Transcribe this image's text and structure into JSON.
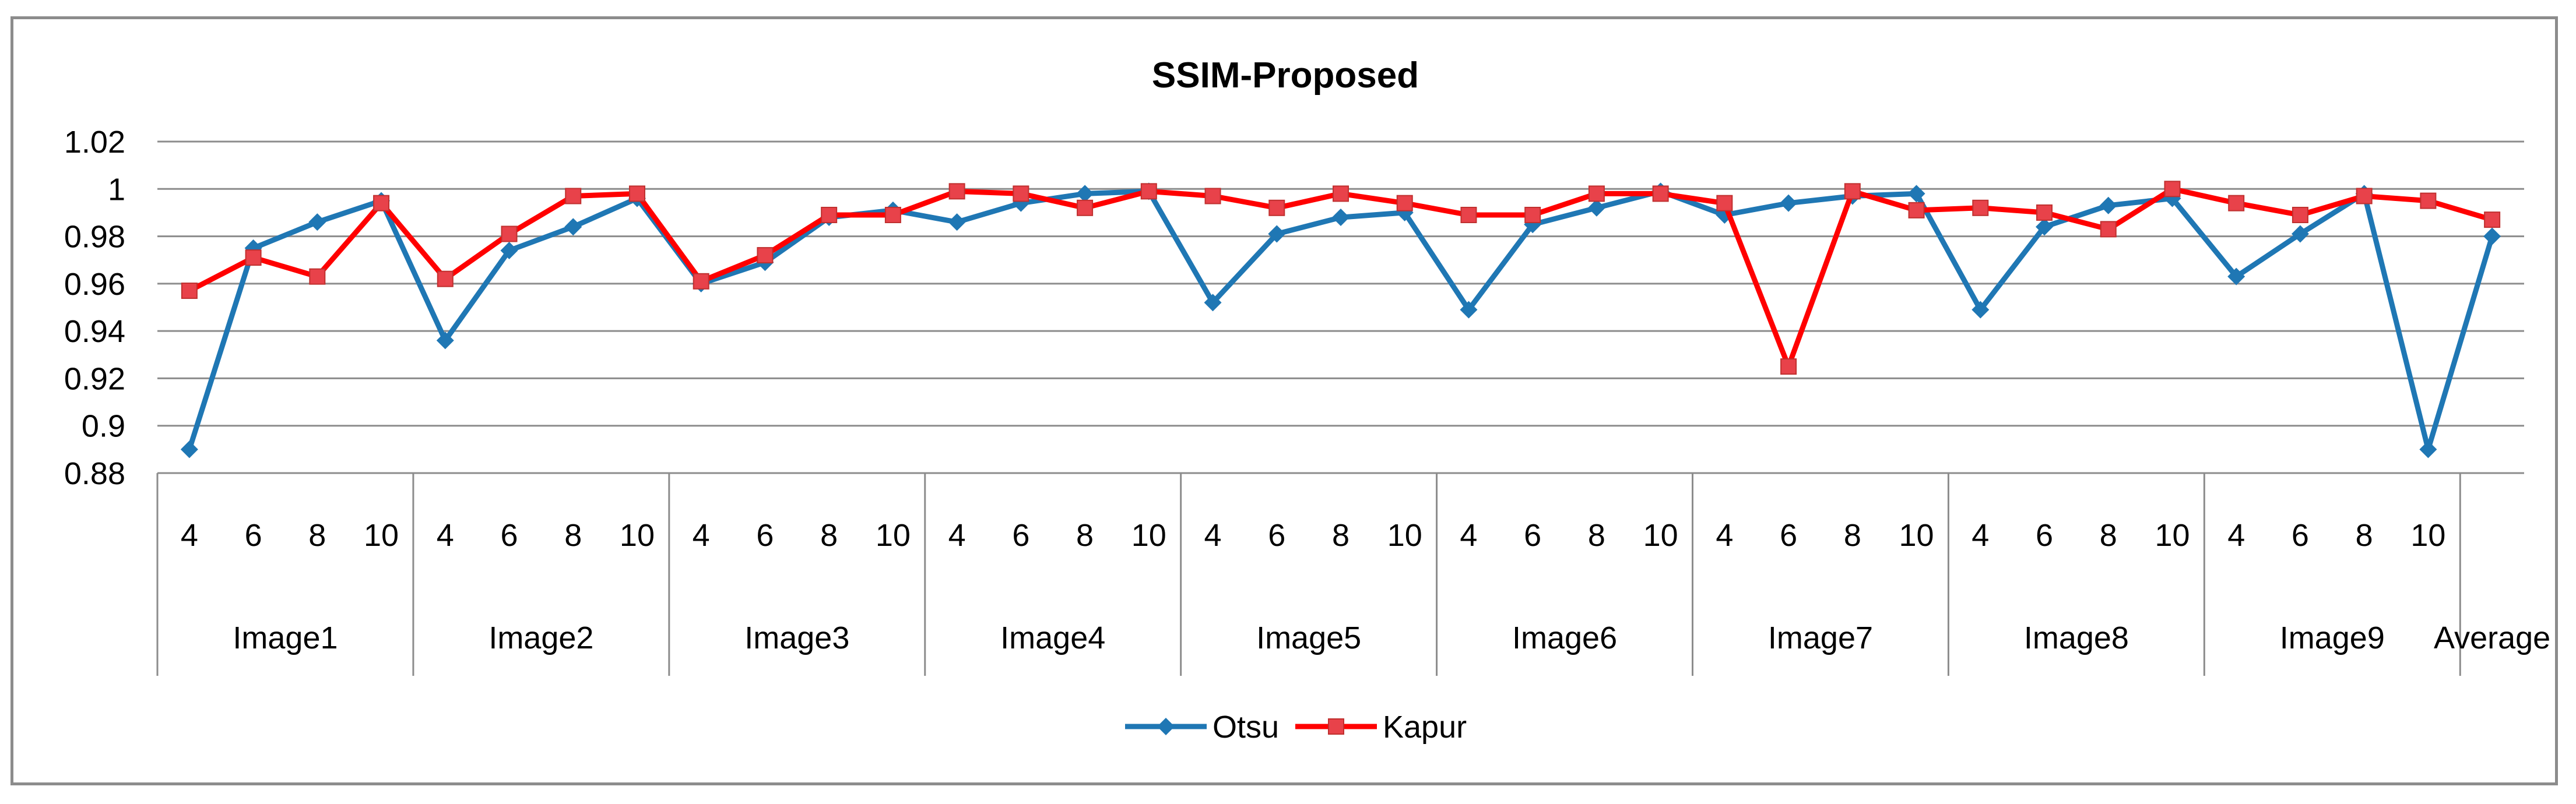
{
  "chart_data": {
    "type": "line",
    "title": "SSIM-Proposed",
    "xlabel": "",
    "ylabel": "",
    "ylim": [
      0.88,
      1.02
    ],
    "yticks": [
      "0.88",
      "0.9",
      "0.92",
      "0.94",
      "0.96",
      "0.98",
      "1",
      "1.02"
    ],
    "grid": true,
    "legend_position": "bottom",
    "groups": [
      {
        "label": "Image1",
        "sub": [
          "4",
          "6",
          "8",
          "10"
        ]
      },
      {
        "label": "Image2",
        "sub": [
          "4",
          "6",
          "8",
          "10"
        ]
      },
      {
        "label": "Image3",
        "sub": [
          "4",
          "6",
          "8",
          "10"
        ]
      },
      {
        "label": "Image4",
        "sub": [
          "4",
          "6",
          "8",
          "10"
        ]
      },
      {
        "label": "Image5",
        "sub": [
          "4",
          "6",
          "8",
          "10"
        ]
      },
      {
        "label": "Image6",
        "sub": [
          "4",
          "6",
          "8",
          "10"
        ]
      },
      {
        "label": "Image7",
        "sub": [
          "4",
          "6",
          "8",
          "10"
        ]
      },
      {
        "label": "Image8",
        "sub": [
          "4",
          "6",
          "8",
          "10"
        ]
      },
      {
        "label": "Image9",
        "sub": [
          "4",
          "6",
          "8",
          "10"
        ]
      },
      {
        "label": "Average",
        "sub": [
          ""
        ]
      }
    ],
    "series": [
      {
        "name": "Otsu",
        "color": "#1f77b4",
        "marker": "diamond",
        "values": [
          0.89,
          0.975,
          0.986,
          0.995,
          0.936,
          0.974,
          0.984,
          0.996,
          0.96,
          0.969,
          0.988,
          0.991,
          0.986,
          0.994,
          0.998,
          0.999,
          0.952,
          0.981,
          0.988,
          0.99,
          0.949,
          0.985,
          0.992,
          0.999,
          0.989,
          0.994,
          0.997,
          0.998,
          0.949,
          0.984,
          0.993,
          0.996,
          0.963,
          0.981,
          0.998,
          0.89,
          0.98
        ]
      },
      {
        "name": "Kapur",
        "color": "#ff0000",
        "marker": "square",
        "values": [
          0.957,
          0.971,
          0.963,
          0.994,
          0.962,
          0.981,
          0.997,
          0.998,
          0.961,
          0.972,
          0.989,
          0.989,
          0.999,
          0.998,
          0.992,
          0.999,
          0.997,
          0.992,
          0.998,
          0.994,
          0.989,
          0.989,
          0.998,
          0.998,
          0.994,
          0.925,
          0.999,
          0.991,
          0.992,
          0.99,
          0.983,
          1.0,
          0.994,
          0.989,
          0.997,
          0.995,
          0.987
        ]
      }
    ]
  }
}
